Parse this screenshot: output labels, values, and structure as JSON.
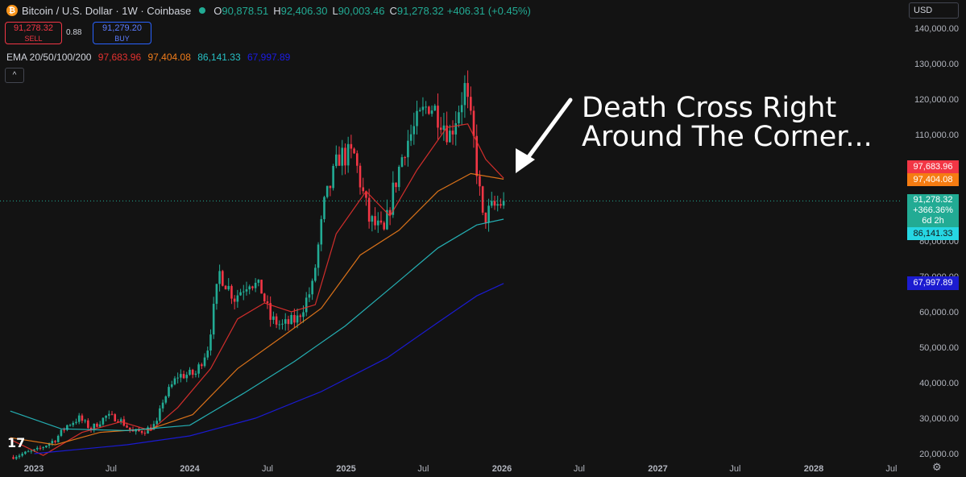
{
  "header": {
    "symbol_title": "Bitcoin / U.S. Dollar · 1W · Coinbase",
    "logo_glyph": "₿",
    "open_label": "O",
    "open": "90,878.51",
    "high_label": "H",
    "high": "92,406.30",
    "low_label": "L",
    "low": "90,003.46",
    "close_label": "C",
    "close": "91,278.32",
    "change": "+406.31 (+0.45%)"
  },
  "trade": {
    "sell_price": "91,278.32",
    "sell_label": "SELL",
    "spread": "0.88",
    "buy_price": "91,279.20",
    "buy_label": "BUY"
  },
  "ema": {
    "label": "EMA 20/50/100/200",
    "v20": "97,683.96",
    "v50": "97,404.08",
    "v100": "86,141.33",
    "v200": "67,997.89"
  },
  "collapse_glyph": "^",
  "currency": "USD",
  "tv_logo": "17",
  "settings_glyph": "⚙",
  "annotation": {
    "line1": "Death Cross Right",
    "line2": "Around The Corner..."
  },
  "price_badges": {
    "ema20": "97,683.96",
    "ema50": "97,404.08",
    "last": "91,278.32",
    "last_change": "+366.36%",
    "countdown": "6d 2h",
    "ema100": "86,141.33",
    "ema200": "67,997.89"
  },
  "colors": {
    "background": "#131313",
    "up": "#22ab94",
    "down": "#f23645",
    "ema20": "#e5312f",
    "ema50": "#f07c1b",
    "ema100": "#27c0c4",
    "ema200": "#1c1ce6"
  },
  "chart_data": {
    "type": "candlestick",
    "timeframe": "1W",
    "y_scale": "linear",
    "ylim": [
      19000,
      146000
    ],
    "y_ticks": [
      20000,
      30000,
      40000,
      50000,
      60000,
      70000,
      80000,
      90000,
      100000,
      110000,
      120000,
      130000,
      140000
    ],
    "y_tick_labels": [
      "20,000.00",
      "30,000.00",
      "40,000.00",
      "50,000.00",
      "60,000.00",
      "70,000.00",
      "80,000.00",
      "90,000.00",
      "100,000.00",
      "110,000.00",
      "120,000.00",
      "130,000.00",
      "140,000.00"
    ],
    "x_range": [
      "2022-11-01",
      "2028-09-01"
    ],
    "x_ticks": [
      {
        "date": "2023-01-01",
        "label": "2023",
        "bold": true
      },
      {
        "date": "2023-07-01",
        "label": "Jul",
        "bold": false
      },
      {
        "date": "2024-01-01",
        "label": "2024",
        "bold": true
      },
      {
        "date": "2024-07-01",
        "label": "Jul",
        "bold": false
      },
      {
        "date": "2025-01-01",
        "label": "2025",
        "bold": true
      },
      {
        "date": "2025-07-01",
        "label": "Jul",
        "bold": false
      },
      {
        "date": "2026-01-01",
        "label": "2026",
        "bold": true
      },
      {
        "date": "2026-07-01",
        "label": "Jul",
        "bold": false
      },
      {
        "date": "2027-01-01",
        "label": "2027",
        "bold": true
      },
      {
        "date": "2027-07-01",
        "label": "Jul",
        "bold": false
      },
      {
        "date": "2028-01-01",
        "label": "2028",
        "bold": true
      },
      {
        "date": "2028-07-01",
        "label": "Jul",
        "bold": false
      }
    ],
    "price_path": [
      {
        "date": "2022-11-07",
        "close": 19000
      },
      {
        "date": "2023-01-09",
        "close": 21000
      },
      {
        "date": "2023-02-20",
        "close": 24000
      },
      {
        "date": "2023-03-20",
        "close": 28000
      },
      {
        "date": "2023-04-17",
        "close": 30000
      },
      {
        "date": "2023-05-15",
        "close": 27000
      },
      {
        "date": "2023-06-19",
        "close": 30500
      },
      {
        "date": "2023-07-17",
        "close": 30000
      },
      {
        "date": "2023-08-21",
        "close": 26000
      },
      {
        "date": "2023-09-18",
        "close": 26500
      },
      {
        "date": "2023-10-16",
        "close": 28500
      },
      {
        "date": "2023-10-30",
        "close": 35000
      },
      {
        "date": "2023-12-04",
        "close": 42000
      },
      {
        "date": "2024-01-15",
        "close": 42500
      },
      {
        "date": "2024-02-12",
        "close": 50000
      },
      {
        "date": "2024-03-11",
        "close": 71000
      },
      {
        "date": "2024-04-15",
        "close": 64000
      },
      {
        "date": "2024-05-20",
        "close": 69000
      },
      {
        "date": "2024-06-17",
        "close": 66000
      },
      {
        "date": "2024-07-08",
        "close": 58000
      },
      {
        "date": "2024-08-05",
        "close": 56000
      },
      {
        "date": "2024-09-09",
        "close": 58000
      },
      {
        "date": "2024-10-14",
        "close": 67000
      },
      {
        "date": "2024-11-11",
        "close": 90000
      },
      {
        "date": "2024-12-16",
        "close": 104000
      },
      {
        "date": "2025-01-20",
        "close": 104000
      },
      {
        "date": "2025-02-24",
        "close": 86000
      },
      {
        "date": "2025-03-31",
        "close": 82000
      },
      {
        "date": "2025-04-21",
        "close": 94000
      },
      {
        "date": "2025-05-19",
        "close": 107000
      },
      {
        "date": "2025-07-14",
        "close": 119000
      },
      {
        "date": "2025-08-11",
        "close": 115000
      },
      {
        "date": "2025-09-01",
        "close": 110000
      },
      {
        "date": "2025-10-06",
        "close": 123000
      },
      {
        "date": "2025-10-27",
        "close": 108000
      },
      {
        "date": "2025-11-17",
        "close": 86000
      },
      {
        "date": "2025-12-08",
        "close": 89000
      },
      {
        "date": "2026-01-05",
        "close": 91278
      }
    ],
    "series": [
      {
        "name": "EMA 20",
        "last": 97683.96,
        "path": [
          {
            "date": "2022-11-07",
            "v": 24000
          },
          {
            "date": "2023-01-23",
            "v": 19500
          },
          {
            "date": "2023-04-24",
            "v": 26000
          },
          {
            "date": "2023-07-24",
            "v": 29000
          },
          {
            "date": "2023-10-02",
            "v": 26500
          },
          {
            "date": "2023-12-04",
            "v": 33000
          },
          {
            "date": "2024-02-19",
            "v": 44000
          },
          {
            "date": "2024-04-22",
            "v": 58000
          },
          {
            "date": "2024-06-24",
            "v": 62500
          },
          {
            "date": "2024-08-26",
            "v": 60000
          },
          {
            "date": "2024-10-21",
            "v": 62000
          },
          {
            "date": "2024-12-09",
            "v": 82000
          },
          {
            "date": "2025-02-17",
            "v": 94000
          },
          {
            "date": "2025-04-14",
            "v": 87000
          },
          {
            "date": "2025-06-16",
            "v": 100000
          },
          {
            "date": "2025-08-25",
            "v": 112000
          },
          {
            "date": "2025-10-13",
            "v": 113000
          },
          {
            "date": "2025-11-24",
            "v": 103000
          },
          {
            "date": "2026-01-05",
            "v": 97683.96
          }
        ]
      },
      {
        "name": "EMA 50",
        "last": 97404.08,
        "path": [
          {
            "date": "2022-11-07",
            "v": 24500
          },
          {
            "date": "2023-02-20",
            "v": 22500
          },
          {
            "date": "2023-06-05",
            "v": 26000
          },
          {
            "date": "2023-10-02",
            "v": 27000
          },
          {
            "date": "2024-01-08",
            "v": 31000
          },
          {
            "date": "2024-04-22",
            "v": 44000
          },
          {
            "date": "2024-08-05",
            "v": 53000
          },
          {
            "date": "2024-11-04",
            "v": 61000
          },
          {
            "date": "2025-02-03",
            "v": 76000
          },
          {
            "date": "2025-05-05",
            "v": 83000
          },
          {
            "date": "2025-08-04",
            "v": 94000
          },
          {
            "date": "2025-10-20",
            "v": 99000
          },
          {
            "date": "2026-01-05",
            "v": 97404.08
          }
        ]
      },
      {
        "name": "EMA 100",
        "last": 86141.33,
        "path": [
          {
            "date": "2022-11-07",
            "v": 32000
          },
          {
            "date": "2023-03-06",
            "v": 27000
          },
          {
            "date": "2023-08-07",
            "v": 26500
          },
          {
            "date": "2024-01-01",
            "v": 28000
          },
          {
            "date": "2024-05-06",
            "v": 37000
          },
          {
            "date": "2024-09-02",
            "v": 46000
          },
          {
            "date": "2024-12-30",
            "v": 56000
          },
          {
            "date": "2025-04-28",
            "v": 68000
          },
          {
            "date": "2025-08-04",
            "v": 78000
          },
          {
            "date": "2025-11-03",
            "v": 84500
          },
          {
            "date": "2026-01-05",
            "v": 86141.33
          }
        ]
      },
      {
        "name": "EMA 200",
        "last": 67997.89,
        "path": [
          {
            "date": "2023-01-02",
            "v": 20000
          },
          {
            "date": "2023-08-07",
            "v": 22500
          },
          {
            "date": "2024-01-01",
            "v": 25000
          },
          {
            "date": "2024-06-03",
            "v": 30000
          },
          {
            "date": "2024-11-04",
            "v": 37500
          },
          {
            "date": "2025-04-07",
            "v": 47000
          },
          {
            "date": "2025-08-04",
            "v": 57000
          },
          {
            "date": "2025-11-03",
            "v": 64500
          },
          {
            "date": "2026-01-05",
            "v": 67997.89
          }
        ]
      }
    ]
  }
}
